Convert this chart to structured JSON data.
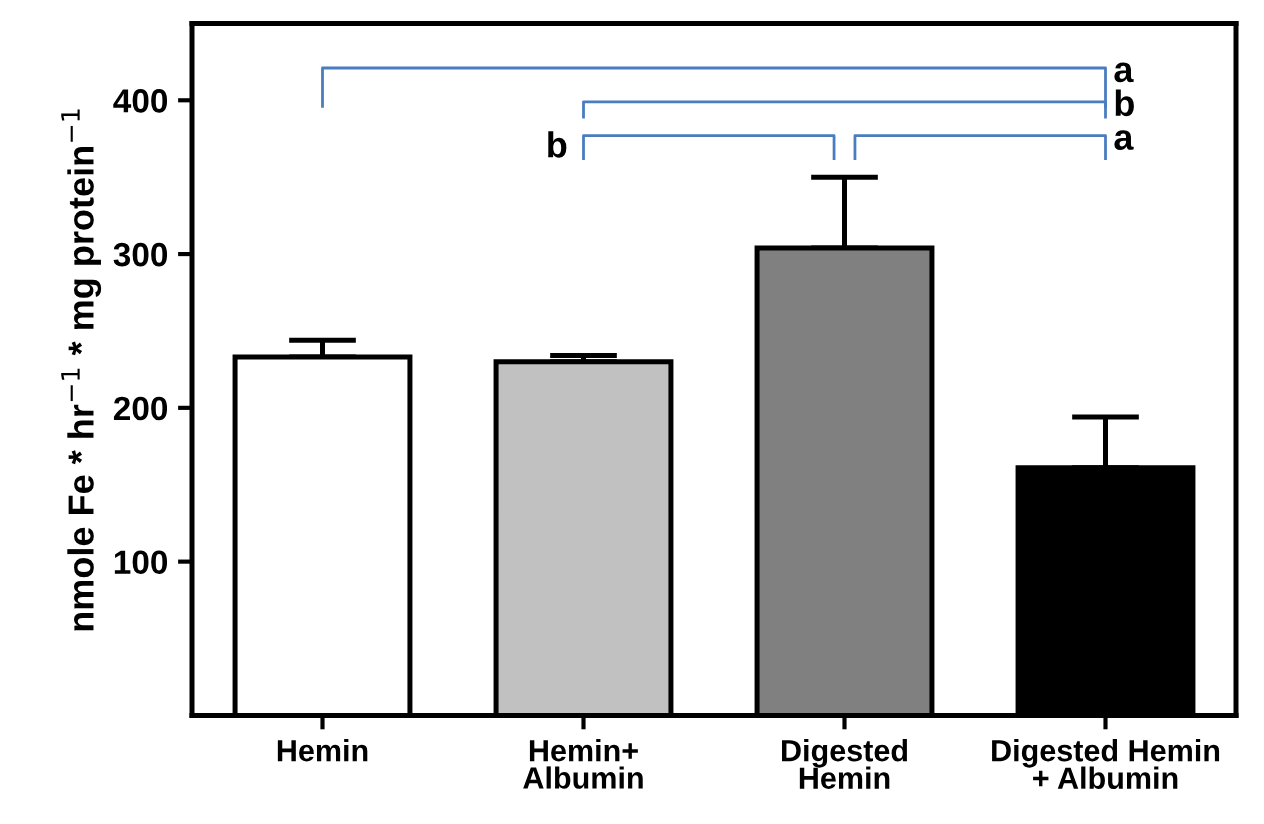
{
  "chart_data": {
    "type": "bar",
    "ylabel": "nmole Fe * hr$^{−1}$ * mg protein$^{−1}$",
    "categories": [
      "Hemin",
      "Hemin+\nAlbumin",
      "Digested\nHemin",
      "Digested Hemin\n+ Albumin"
    ],
    "values": [
      233,
      230,
      304,
      161
    ],
    "errors": [
      11,
      4,
      46,
      33
    ],
    "colors": [
      "#ffffff",
      "#c0c1c0",
      "#808080",
      "#000000"
    ],
    "ylim": [
      0,
      450
    ],
    "yticks": [
      100,
      200,
      300,
      400
    ],
    "grid": false,
    "legend": false,
    "annotations": [
      "a",
      "b",
      "b",
      "a"
    ]
  }
}
